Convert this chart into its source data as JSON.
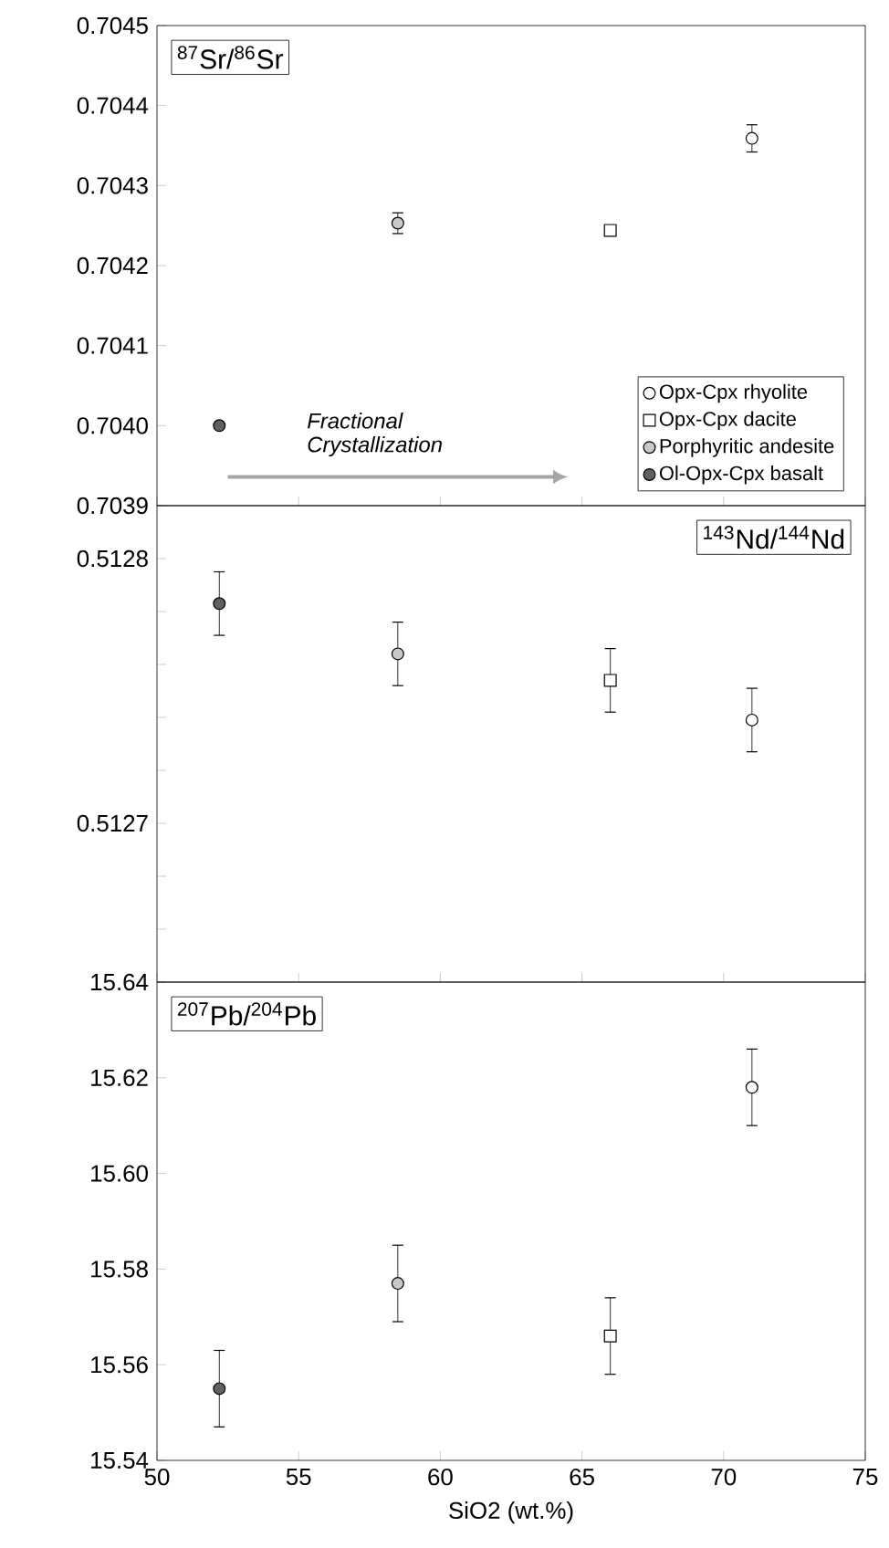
{
  "chart_data": [
    {
      "type": "scatter",
      "title": "$^{87}$Sr/$^{86}$Sr",
      "xlim": [
        50,
        75
      ],
      "xticks": [
        50,
        55,
        60,
        65,
        70,
        75
      ],
      "ylim": [
        0.7039,
        0.7045
      ],
      "yticks": [
        0.7039,
        {
          "value": 0.704,
          "label": "0.7040"
        },
        0.7041,
        0.7042,
        0.7043,
        0.7044,
        0.7045
      ],
      "tick_labels": "y",
      "legend": "bottom right",
      "annotations": [
        "Fractional Crystallization"
      ],
      "series": [
        {
          "name": "Opx-Cpx rhyolite",
          "color": "#ffffff",
          "marker": "circle",
          "x": [
            71.0
          ],
          "values": [
            0.704359
          ],
          "errors": [
            1.7e-05
          ]
        },
        {
          "name": "Opx-Cpx dacite",
          "color": "#ffffff",
          "marker": "square",
          "x": [
            66.0
          ],
          "values": [
            0.704244
          ],
          "errors": [
            null
          ]
        },
        {
          "name": "Porphyritic andesite",
          "color": "#c8c8c8",
          "marker": "circle",
          "x": [
            58.5
          ],
          "values": [
            0.704253
          ],
          "errors": [
            1.3e-05
          ]
        },
        {
          "name": "Ol-Opx-Cpx basalt",
          "color": "#606060",
          "marker": "circle",
          "x": [
            52.2
          ],
          "values": [
            0.704
          ],
          "errors": [
            null
          ]
        }
      ]
    },
    {
      "type": "scatter",
      "title": "$^{143}$Nd/$^{144}$Nd",
      "xlim": [
        50,
        75
      ],
      "xticks": [
        50,
        55,
        60,
        65,
        70,
        75
      ],
      "ylim": [
        0.51264,
        0.51282
      ],
      "yticks": [
        {
          "value": 0.51264,
          "label": null
        },
        {
          "value": 0.51266,
          "label": null
        },
        {
          "value": 0.51268,
          "label": null
        },
        0.5127,
        {
          "value": 0.51272,
          "label": null
        },
        {
          "value": 0.51274,
          "label": null
        },
        {
          "value": 0.51276,
          "label": null
        },
        {
          "value": 0.51278,
          "label": null
        },
        0.5128
      ],
      "tick_labels": "y",
      "series": [
        {
          "color": "#ffffff",
          "marker": "circle",
          "x": [
            71.0
          ],
          "values": [
            0.512739
          ],
          "errors": [
            1.2e-05
          ]
        },
        {
          "color": "#ffffff",
          "marker": "square",
          "x": [
            66.0
          ],
          "values": [
            0.512754
          ],
          "errors": [
            1.2e-05
          ]
        },
        {
          "color": "#c8c8c8",
          "marker": "circle",
          "x": [
            58.5
          ],
          "values": [
            0.512764
          ],
          "errors": [
            1.2e-05
          ]
        },
        {
          "color": "#606060",
          "marker": "circle",
          "x": [
            52.2
          ],
          "values": [
            0.512783
          ],
          "errors": [
            1.2e-05
          ]
        }
      ]
    },
    {
      "type": "scatter",
      "title": "$^{207}$Pb/$^{204}$Pb",
      "xlabel": "SiO2 (wt.%)",
      "xlim": [
        50,
        75
      ],
      "xticks": [
        50,
        55,
        60,
        65,
        70,
        75
      ],
      "ylim": [
        15.54,
        15.64
      ],
      "yticks": [
        15.54,
        15.56,
        {
          "value": 15.58,
          "label": "15.58"
        },
        {
          "value": 15.6,
          "label": "15.60"
        },
        15.62,
        15.64
      ],
      "series": [
        {
          "color": "#ffffff",
          "marker": "circle",
          "x": [
            71.0
          ],
          "values": [
            15.618
          ],
          "errors": [
            0.008
          ]
        },
        {
          "color": "#ffffff",
          "marker": "square",
          "x": [
            66.0
          ],
          "values": [
            15.566
          ],
          "errors": [
            0.008
          ]
        },
        {
          "color": "#c8c8c8",
          "marker": "circle",
          "x": [
            58.5
          ],
          "values": [
            15.577
          ],
          "errors": [
            0.008
          ]
        },
        {
          "color": "#606060",
          "marker": "circle",
          "x": [
            52.2
          ],
          "values": [
            15.555
          ],
          "errors": [
            0.008
          ]
        }
      ]
    }
  ]
}
